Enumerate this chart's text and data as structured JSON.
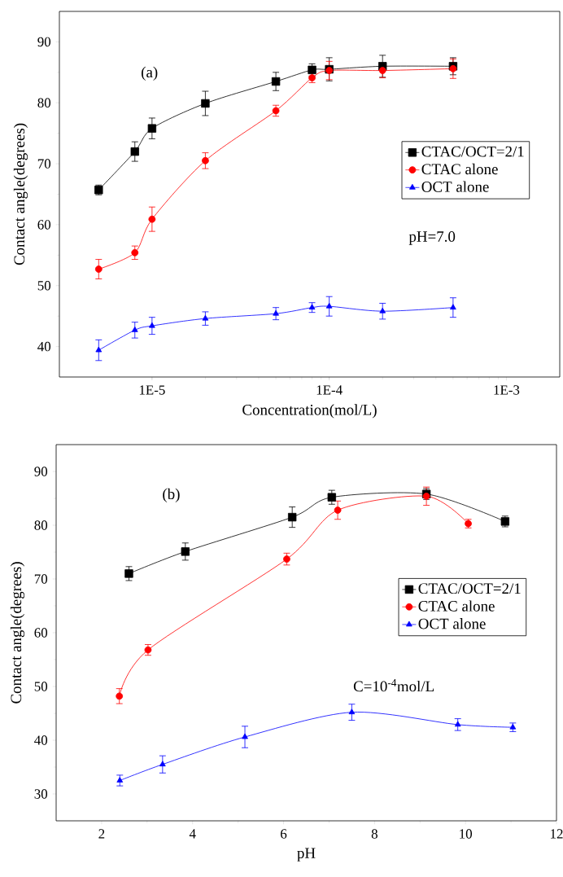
{
  "chart_data": [
    {
      "type": "line",
      "log": "x",
      "xlabel": "Concentration(mol/L)",
      "ylabel": "Contact angle(degrees)",
      "xlim": [
        3e-06,
        0.002
      ],
      "ylim": [
        35,
        95
      ],
      "xticks": [
        {
          "value": 1e-05,
          "label": "1E-5"
        },
        {
          "value": 0.0001,
          "label": "1E-4"
        },
        {
          "value": 0.001,
          "label": "1E-3"
        }
      ],
      "yticks": [
        40,
        50,
        60,
        70,
        80,
        90
      ],
      "x": [
        5e-06,
        8e-06,
        1e-05,
        2e-05,
        5e-05,
        8e-05,
        0.0001,
        0.0002,
        0.0005
      ],
      "annotations": [
        "(a)",
        "pH=7.0"
      ],
      "legend": "right",
      "series": [
        {
          "name": "CTAC/OCT=2/1",
          "color": "#000000",
          "marker": "square",
          "values": [
            65.7,
            72.0,
            75.8,
            79.9,
            83.5,
            85.4,
            85.5,
            86.0,
            86.0
          ],
          "errors": [
            0.8,
            1.6,
            1.7,
            2.0,
            1.5,
            1.0,
            1.9,
            1.8,
            1.4
          ]
        },
        {
          "name": "CTAC alone",
          "color": "#ff0000",
          "marker": "circle",
          "values": [
            52.7,
            55.4,
            60.9,
            70.5,
            78.7,
            84.1,
            85.3,
            85.3,
            85.6
          ],
          "errors": [
            1.6,
            1.1,
            2.0,
            1.3,
            0.9,
            0.8,
            1.5,
            1.2,
            1.6
          ]
        },
        {
          "name": "OCT alone",
          "color": "#0000ff",
          "marker": "triangle",
          "values": [
            39.4,
            42.7,
            43.4,
            44.6,
            45.4,
            46.4,
            46.6,
            45.8,
            46.4
          ],
          "errors": [
            1.7,
            1.3,
            1.4,
            1.1,
            1.0,
            0.8,
            1.6,
            1.3,
            1.6
          ]
        }
      ]
    },
    {
      "type": "line",
      "xlabel": "pH",
      "ylabel": "Contact angle(degrees)",
      "xlim": [
        1,
        12
      ],
      "ylim": [
        25,
        95
      ],
      "xticks": [
        2,
        4,
        6,
        8,
        10,
        12
      ],
      "yticks": [
        30,
        40,
        50,
        60,
        70,
        80,
        90
      ],
      "annotations": [
        "(b)",
        "C=10$^{-4}$mol/L"
      ],
      "legend": "right",
      "series": [
        {
          "name": "CTAC/OCT=2/1",
          "color": "#000000",
          "marker": "square",
          "x": [
            2.6,
            3.84,
            6.19,
            7.06,
            9.14,
            10.87
          ],
          "values": [
            71.0,
            75.1,
            81.5,
            85.2,
            85.8,
            80.7
          ],
          "errors": [
            1.3,
            1.6,
            1.9,
            1.3,
            1.0,
            1.0
          ]
        },
        {
          "name": "CTAC alone",
          "color": "#ff0000",
          "marker": "circle",
          "x": [
            2.39,
            3.02,
            6.07,
            7.19,
            9.14,
            10.06
          ],
          "values": [
            48.2,
            56.8,
            73.7,
            82.8,
            85.4,
            80.3
          ],
          "errors": [
            1.4,
            1.0,
            1.1,
            1.7,
            1.7,
            0.8
          ]
        },
        {
          "name": "OCT alone",
          "color": "#0000ff",
          "marker": "triangle",
          "x": [
            2.4,
            3.34,
            5.15,
            7.5,
            9.83,
            11.04
          ],
          "values": [
            32.5,
            35.5,
            40.6,
            45.2,
            42.9,
            42.4
          ],
          "errors": [
            1.0,
            1.6,
            2.0,
            1.5,
            1.1,
            0.8
          ]
        }
      ]
    }
  ]
}
